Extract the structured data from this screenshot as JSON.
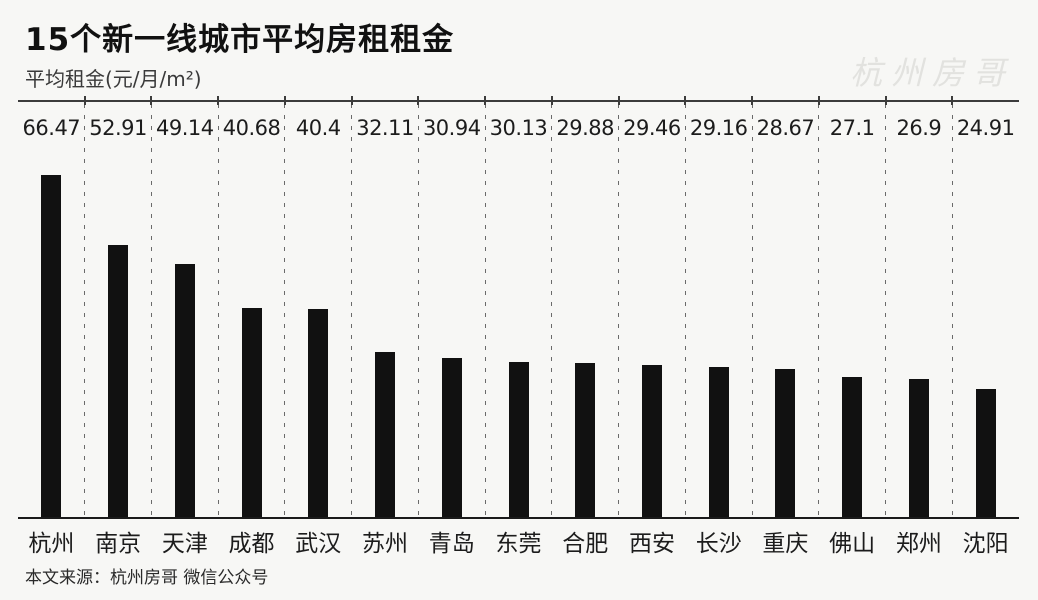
{
  "page": {
    "background_color": "#f7f7f5"
  },
  "header": {
    "title": "15个新一线城市平均房租租金",
    "subtitle": "平均租金(元/月/m²)",
    "watermark": "杭州房哥"
  },
  "footer": {
    "source": "本文来源：杭州房哥 微信公众号"
  },
  "chart_data": {
    "type": "bar",
    "title": "15个新一线城市平均房租租金",
    "ylabel": "平均租金(元/月/m²)",
    "categories": [
      "杭州",
      "南京",
      "天津",
      "成都",
      "武汉",
      "苏州",
      "青岛",
      "东莞",
      "合肥",
      "西安",
      "长沙",
      "重庆",
      "佛山",
      "郑州",
      "沈阳"
    ],
    "values": [
      66.47,
      52.91,
      49.14,
      40.68,
      40.4,
      32.11,
      30.94,
      30.13,
      29.88,
      29.46,
      29.16,
      28.67,
      27.1,
      26.9,
      24.91
    ],
    "value_labels": [
      "66.47",
      "52.91",
      "49.14",
      "40.68",
      "40.4",
      "32.11",
      "30.94",
      "30.13",
      "29.88",
      "29.46",
      "29.16",
      "28.67",
      "27.1",
      "26.9",
      "24.91"
    ],
    "bar_color": "#111111",
    "axis_color": "#3c3c3c",
    "grid": "vertical-dashed-column-separators",
    "legend": "none",
    "ylim": [
      0,
      81
    ],
    "source_note": "本文来源：杭州房哥 微信公众号"
  }
}
